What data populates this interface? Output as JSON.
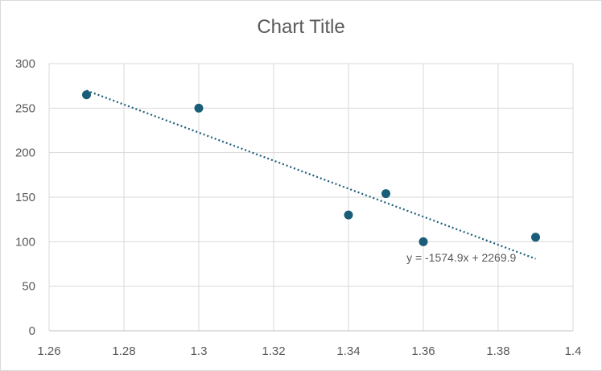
{
  "chart_data": {
    "type": "scatter",
    "title": "Chart Title",
    "xlabel": "",
    "ylabel": "",
    "xlim": [
      1.26,
      1.4
    ],
    "ylim": [
      0,
      300
    ],
    "x_ticks": [
      "1.26",
      "1.28",
      "1.3",
      "1.32",
      "1.34",
      "1.36",
      "1.38",
      "1.4"
    ],
    "y_ticks": [
      "0",
      "50",
      "100",
      "150",
      "200",
      "250",
      "300"
    ],
    "grid": true,
    "legend": "none",
    "series": [
      {
        "points": [
          {
            "x": 1.27,
            "y": 265
          },
          {
            "x": 1.3,
            "y": 250
          },
          {
            "x": 1.34,
            "y": 130
          },
          {
            "x": 1.35,
            "y": 154
          },
          {
            "x": 1.36,
            "y": 100
          },
          {
            "x": 1.39,
            "y": 105
          }
        ],
        "color": "#1a5d78"
      }
    ],
    "trendline": {
      "type": "linear",
      "slope": -1574.9,
      "intercept": 2269.9,
      "x_start": 1.27,
      "x_end": 1.39,
      "equation_label": "y = -1574.9x + 2269.9",
      "color": "#1a5d78"
    }
  }
}
